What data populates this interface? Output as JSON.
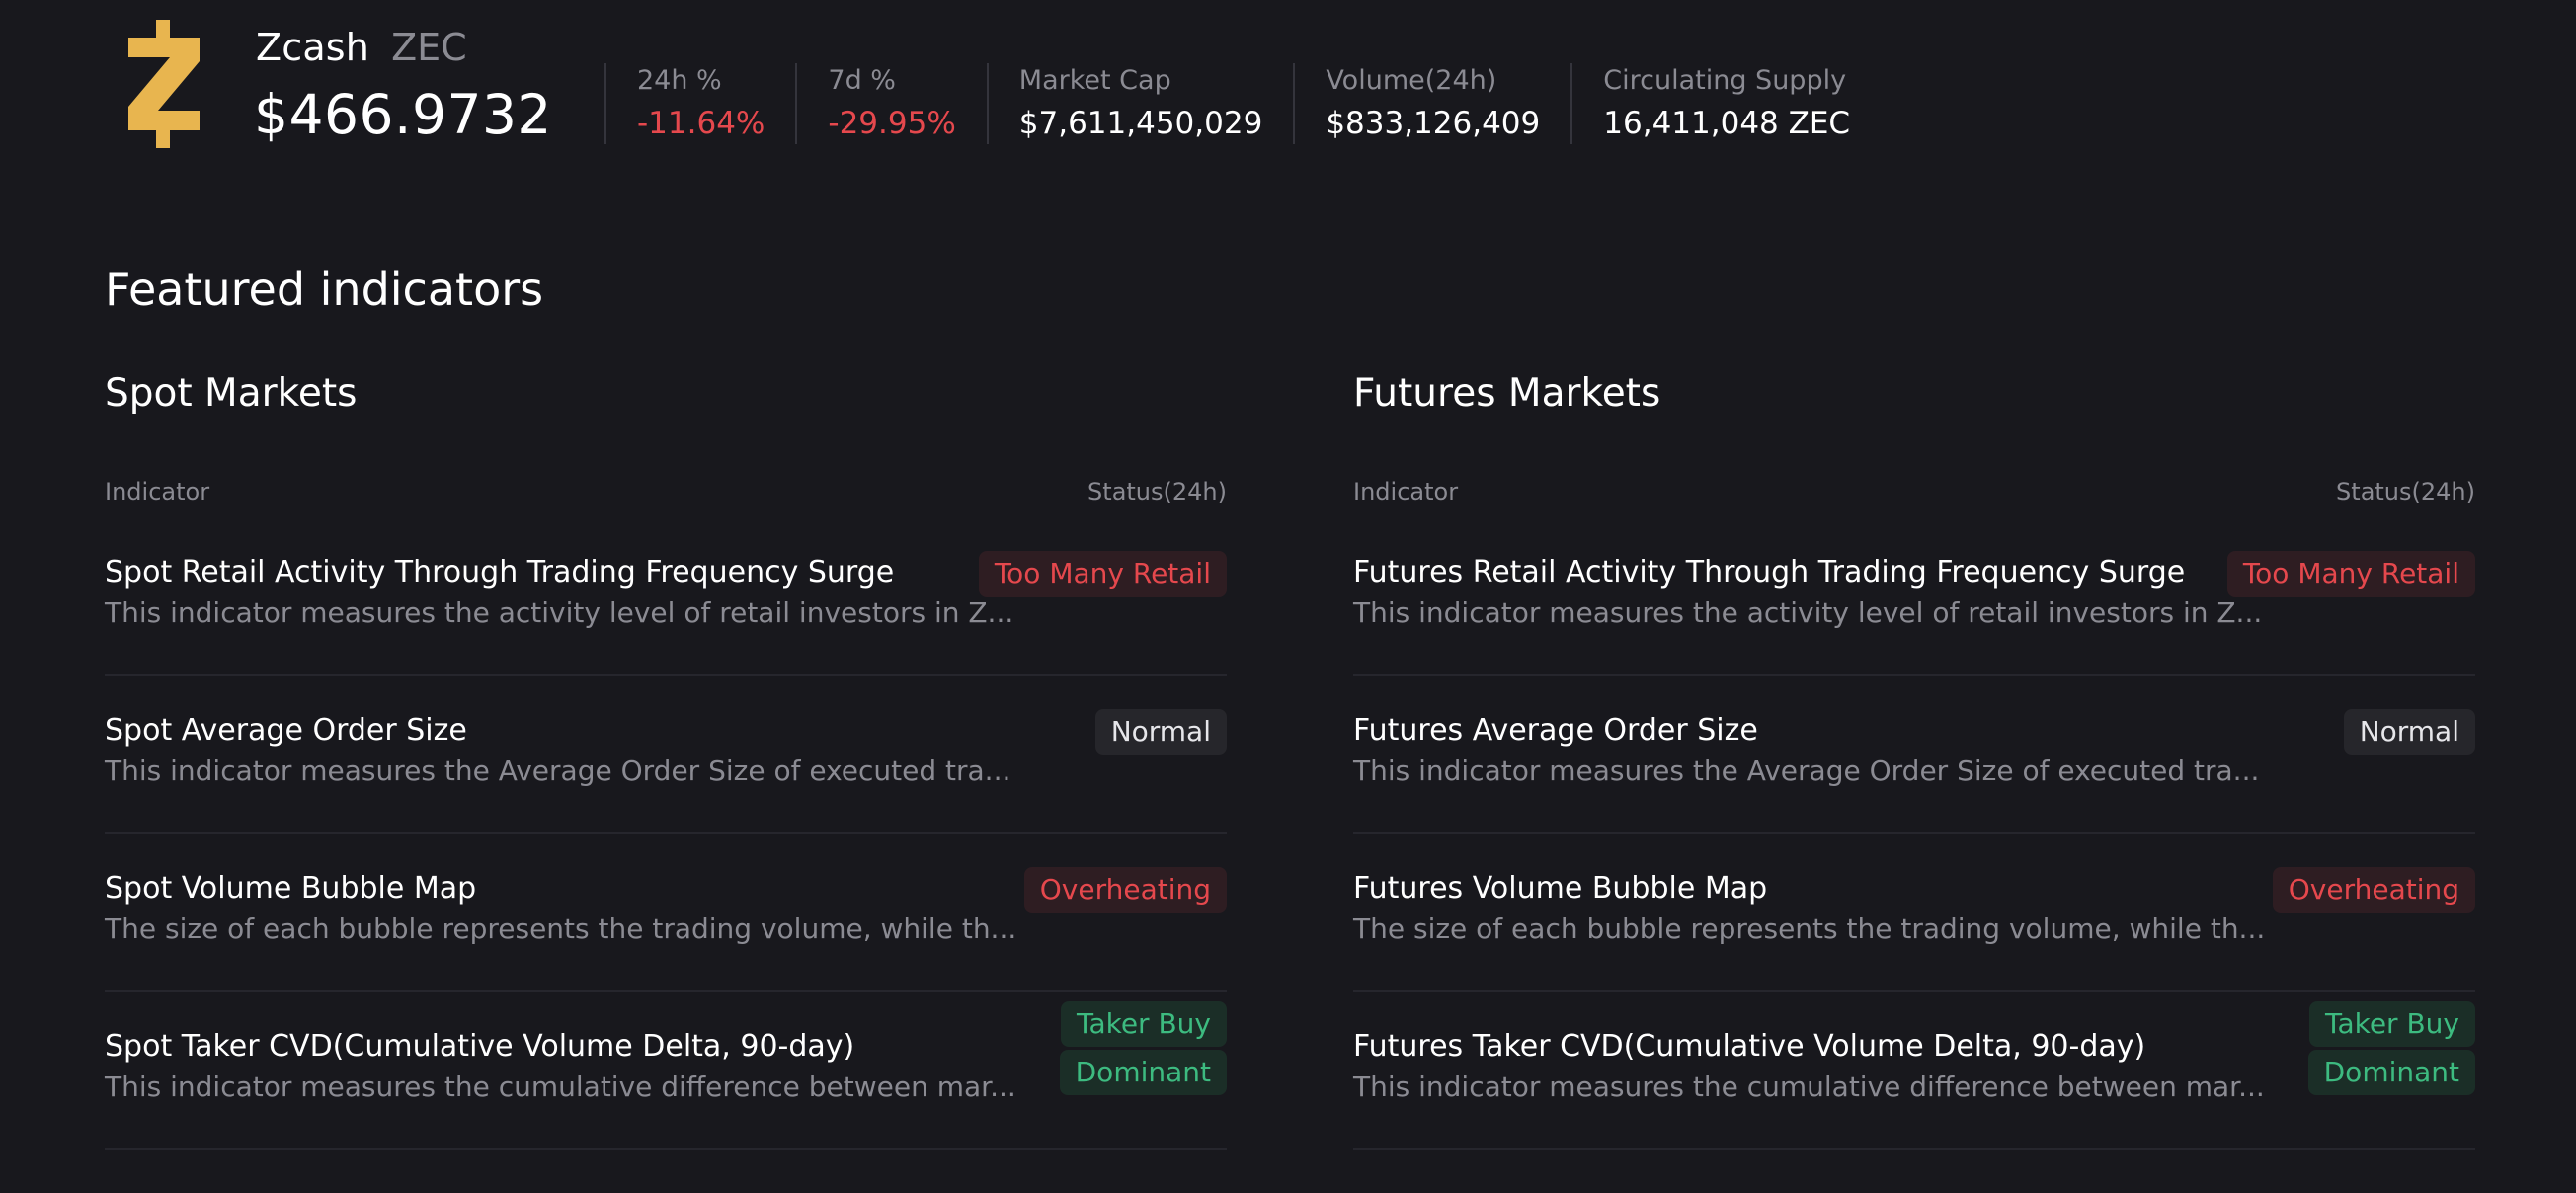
{
  "coin": {
    "name": "Zcash",
    "symbol": "ZEC",
    "price": "$466.9732",
    "logo_icon": "zcash-logo-icon",
    "logo_color": "#e8b54f"
  },
  "stats": [
    {
      "label": "24h %",
      "value": "-11.64%",
      "negative": true
    },
    {
      "label": "7d %",
      "value": "-29.95%",
      "negative": true
    },
    {
      "label": "Market Cap",
      "value": "$7,611,450,029",
      "negative": false
    },
    {
      "label": "Volume(24h)",
      "value": "$833,126,409",
      "negative": false
    },
    {
      "label": "Circulating Supply",
      "value": "16,411,048 ZEC",
      "negative": false
    }
  ],
  "featured": {
    "title": "Featured indicators",
    "spot": {
      "title": "Spot Markets",
      "col_indicator": "Indicator",
      "col_status": "Status(24h)",
      "rows": [
        {
          "name": "Spot Retail Activity Through Trading Frequency Surge",
          "desc": "This indicator measures the activity level of retail investors in Z...",
          "status": [
            "Too Many Retail"
          ],
          "tone": "red"
        },
        {
          "name": "Spot Average Order Size",
          "desc": "This indicator measures the Average Order Size of executed tra...",
          "status": [
            "Normal"
          ],
          "tone": "gray"
        },
        {
          "name": "Spot Volume Bubble Map",
          "desc": "The size of each bubble represents the trading volume, while th...",
          "status": [
            "Overheating"
          ],
          "tone": "red"
        },
        {
          "name": "Spot Taker CVD(Cumulative Volume Delta, 90-day)",
          "desc": "This indicator measures the cumulative difference between mar...",
          "status": [
            "Taker Buy",
            "Dominant"
          ],
          "tone": "green"
        }
      ]
    },
    "futures": {
      "title": "Futures Markets",
      "col_indicator": "Indicator",
      "col_status": "Status(24h)",
      "rows": [
        {
          "name": "Futures Retail Activity Through Trading Frequency Surge",
          "desc": "This indicator measures the activity level of retail investors in Z...",
          "status": [
            "Too Many Retail"
          ],
          "tone": "red"
        },
        {
          "name": "Futures Average Order Size",
          "desc": "This indicator measures the Average Order Size of executed tra...",
          "status": [
            "Normal"
          ],
          "tone": "gray"
        },
        {
          "name": "Futures Volume Bubble Map",
          "desc": "The size of each bubble represents the trading volume, while th...",
          "status": [
            "Overheating"
          ],
          "tone": "red"
        },
        {
          "name": "Futures Taker CVD(Cumulative Volume Delta, 90-day)",
          "desc": "This indicator measures the cumulative difference between mar...",
          "status": [
            "Taker Buy",
            "Dominant"
          ],
          "tone": "green"
        }
      ]
    }
  }
}
